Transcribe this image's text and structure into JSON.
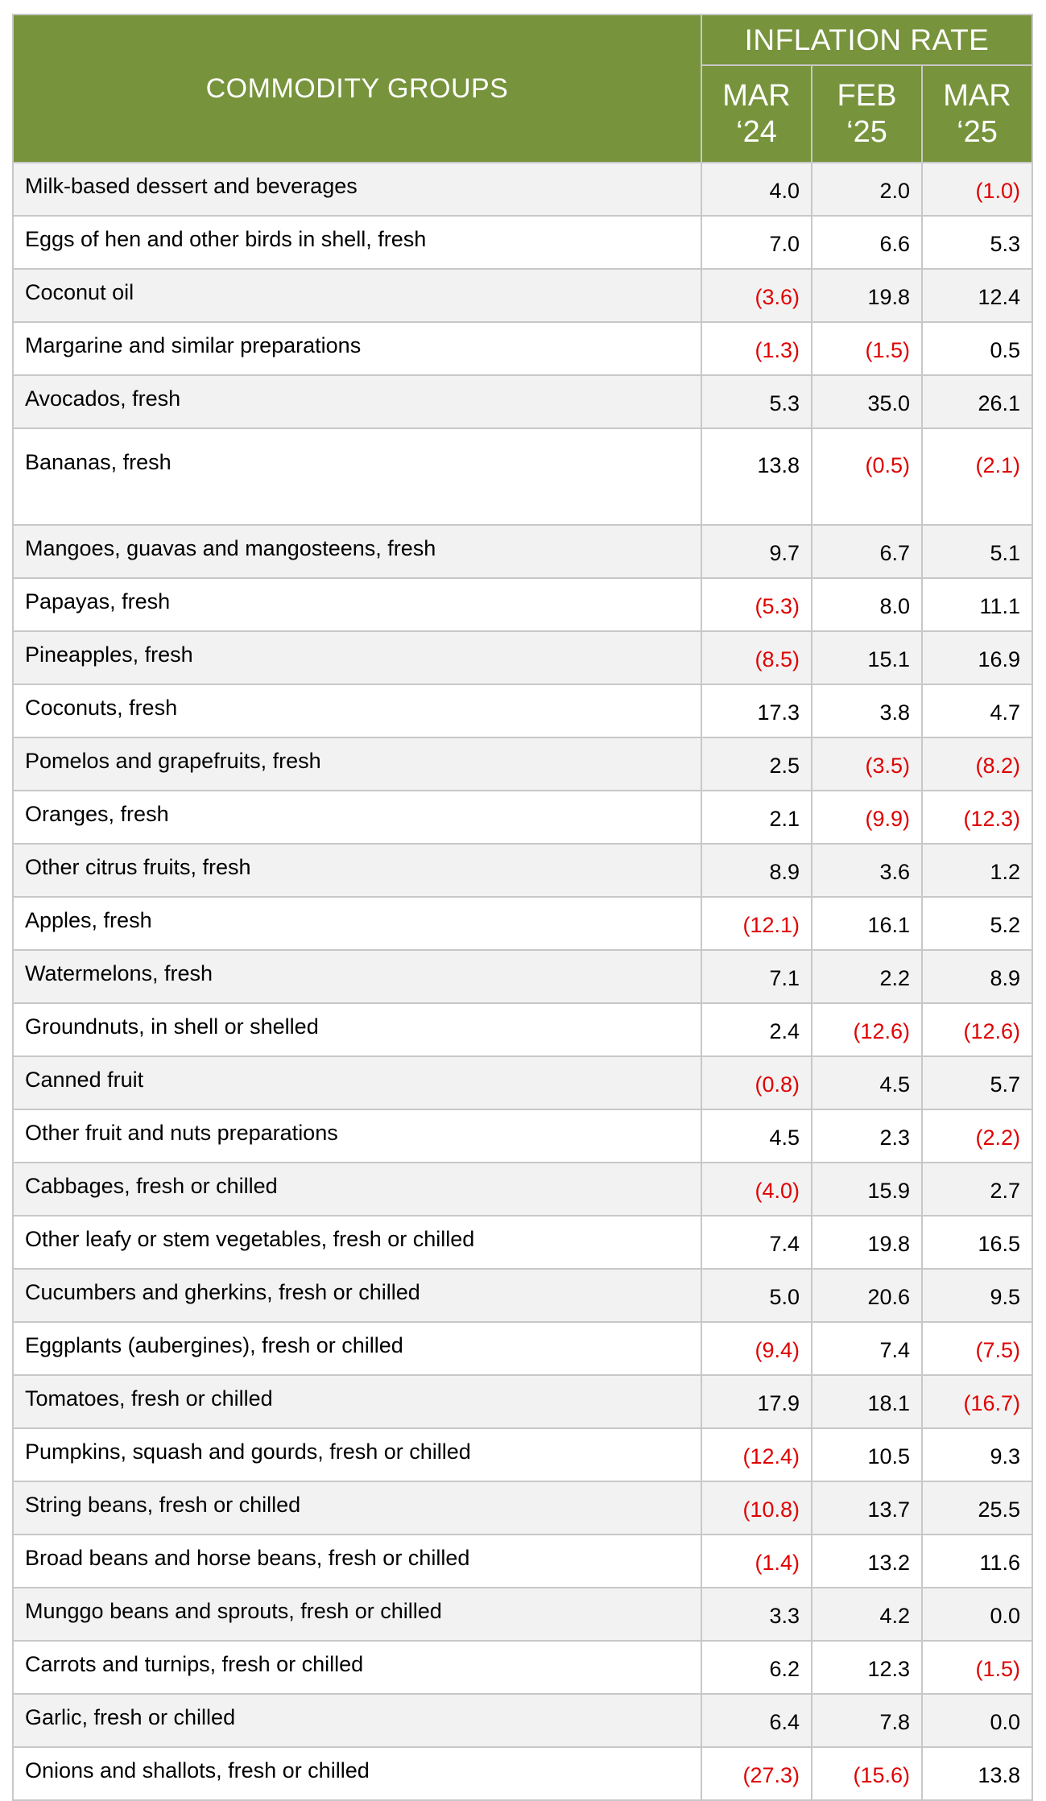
{
  "header": {
    "commodity_label": "COMMODITY GROUPS",
    "inflation_label": "INFLATION RATE",
    "periods": [
      {
        "line1": "MAR",
        "line2": "‘24"
      },
      {
        "line1": "FEB",
        "line2": "‘25"
      },
      {
        "line1": "MAR",
        "line2": "‘25"
      }
    ]
  },
  "rows": [
    {
      "name": "Milk-based dessert and beverages",
      "values": [
        "4.0",
        "2.0",
        "(1.0)"
      ]
    },
    {
      "name": "Eggs of hen and other birds in shell, fresh",
      "values": [
        "7.0",
        "6.6",
        "5.3"
      ]
    },
    {
      "name": "Coconut oil",
      "values": [
        "(3.6)",
        "19.8",
        "12.4"
      ]
    },
    {
      "name": "Margarine and similar preparations",
      "values": [
        "(1.3)",
        "(1.5)",
        "0.5"
      ]
    },
    {
      "name": "Avocados, fresh",
      "values": [
        "5.3",
        "35.0",
        "26.1"
      ]
    },
    {
      "name": "Bananas, fresh",
      "values": [
        "13.8",
        "(0.5)",
        "(2.1)"
      ]
    },
    {
      "name": "Mangoes, guavas and mangosteens, fresh",
      "values": [
        "9.7",
        "6.7",
        "5.1"
      ]
    },
    {
      "name": "Papayas, fresh",
      "values": [
        "(5.3)",
        "8.0",
        "11.1"
      ]
    },
    {
      "name": "Pineapples, fresh",
      "values": [
        "(8.5)",
        "15.1",
        "16.9"
      ]
    },
    {
      "name": "Coconuts, fresh",
      "values": [
        "17.3",
        "3.8",
        "4.7"
      ]
    },
    {
      "name": "Pomelos and grapefruits, fresh",
      "values": [
        "2.5",
        "(3.5)",
        "(8.2)"
      ]
    },
    {
      "name": "Oranges, fresh",
      "values": [
        "2.1",
        "(9.9)",
        "(12.3)"
      ]
    },
    {
      "name": "Other citrus fruits, fresh",
      "values": [
        "8.9",
        "3.6",
        "1.2"
      ]
    },
    {
      "name": "Apples, fresh",
      "values": [
        "(12.1)",
        "16.1",
        "5.2"
      ]
    },
    {
      "name": "Watermelons, fresh",
      "values": [
        "7.1",
        "2.2",
        "8.9"
      ]
    },
    {
      "name": "Groundnuts, in shell or shelled",
      "values": [
        "2.4",
        "(12.6)",
        "(12.6)"
      ]
    },
    {
      "name": "Canned fruit",
      "values": [
        "(0.8)",
        "4.5",
        "5.7"
      ]
    },
    {
      "name": "Other fruit and nuts preparations",
      "values": [
        "4.5",
        "2.3",
        "(2.2)"
      ]
    },
    {
      "name": "Cabbages, fresh or chilled",
      "values": [
        "(4.0)",
        "15.9",
        "2.7"
      ]
    },
    {
      "name": "Other leafy or stem vegetables, fresh or chilled",
      "values": [
        "7.4",
        "19.8",
        "16.5"
      ]
    },
    {
      "name": "Cucumbers and gherkins, fresh or chilled",
      "values": [
        "5.0",
        "20.6",
        "9.5"
      ]
    },
    {
      "name": "Eggplants (aubergines), fresh or chilled",
      "values": [
        "(9.4)",
        "7.4",
        "(7.5)"
      ]
    },
    {
      "name": "Tomatoes, fresh or chilled",
      "values": [
        "17.9",
        "18.1",
        "(16.7)"
      ]
    },
    {
      "name": "Pumpkins, squash and gourds, fresh or chilled",
      "values": [
        "(12.4)",
        "10.5",
        "9.3"
      ]
    },
    {
      "name": "String beans, fresh or chilled",
      "values": [
        "(10.8)",
        "13.7",
        "25.5"
      ]
    },
    {
      "name": "Broad beans and horse beans, fresh or chilled",
      "values": [
        "(1.4)",
        "13.2",
        "11.6"
      ]
    },
    {
      "name": "Munggo beans and sprouts, fresh or chilled",
      "values": [
        "3.3",
        "4.2",
        "0.0"
      ]
    },
    {
      "name": "Carrots and turnips, fresh or chilled",
      "values": [
        "6.2",
        "12.3",
        "(1.5)"
      ]
    },
    {
      "name": "Garlic, fresh or chilled",
      "values": [
        "6.4",
        "7.8",
        "0.0"
      ]
    },
    {
      "name": "Onions and shallots, fresh or chilled",
      "values": [
        "(27.3)",
        "(15.6)",
        "13.8"
      ]
    }
  ],
  "colors": {
    "header_bg": "#77933c",
    "header_text": "#ffffff",
    "negative_text": "#e00000",
    "row_alt_bg": "#f2f2f2",
    "border": "#c8c8c8"
  }
}
